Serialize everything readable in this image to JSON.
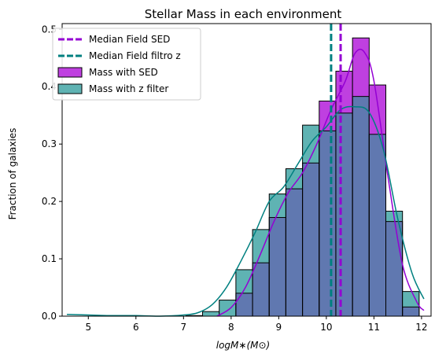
{
  "chart_data": {
    "type": "bar",
    "title": "Stellar Mass in each environment",
    "xlabel": "logM∗(M⊙)",
    "ylabel": "Fraction of galaxies",
    "xlim": [
      4.45,
      12.2
    ],
    "ylim": [
      0,
      0.51
    ],
    "xticks": [
      5,
      6,
      7,
      8,
      9,
      10,
      11,
      12
    ],
    "yticks": [
      0.0,
      0.1,
      0.2,
      0.3,
      0.4,
      0.5
    ],
    "grid": false,
    "legend_position": "top-left",
    "bin_edges": [
      7.05,
      7.4,
      7.75,
      8.1,
      8.45,
      8.8,
      9.15,
      9.5,
      9.85,
      10.2,
      10.55,
      10.9,
      11.25,
      11.6,
      11.95
    ],
    "series": [
      {
        "name": "Mass with SED",
        "type": "histogram",
        "color": "#bf40e0",
        "values": [
          0.0,
          0.0,
          0.0,
          0.04,
          0.093,
          0.172,
          0.222,
          0.267,
          0.375,
          0.427,
          0.485,
          0.403,
          0.165,
          0.016
        ],
        "kde": {
          "x": [
            7.7,
            8.0,
            8.3,
            8.6,
            8.9,
            9.2,
            9.5,
            9.8,
            10.1,
            10.4,
            10.6,
            10.8,
            11.0,
            11.3,
            11.6,
            11.9,
            12.05
          ],
          "y": [
            0.0,
            0.015,
            0.05,
            0.105,
            0.165,
            0.215,
            0.25,
            0.3,
            0.36,
            0.41,
            0.458,
            0.46,
            0.41,
            0.24,
            0.09,
            0.025,
            0.01
          ]
        }
      },
      {
        "name": "Mass with z filter",
        "type": "histogram",
        "color": "#5fb3b3",
        "values": [
          0.001,
          0.008,
          0.028,
          0.081,
          0.151,
          0.213,
          0.257,
          0.333,
          0.323,
          0.354,
          0.383,
          0.317,
          0.183,
          0.043
        ],
        "kde": {
          "x": [
            4.55,
            5.0,
            5.5,
            6.0,
            6.5,
            7.0,
            7.3,
            7.6,
            7.9,
            8.2,
            8.5,
            8.8,
            9.1,
            9.4,
            9.7,
            10.0,
            10.3,
            10.6,
            10.9,
            11.2,
            11.5,
            11.8,
            12.05
          ],
          "y": [
            0.003,
            0.002,
            0.001,
            0.001,
            0.0,
            0.002,
            0.006,
            0.02,
            0.05,
            0.095,
            0.145,
            0.2,
            0.225,
            0.265,
            0.305,
            0.33,
            0.36,
            0.365,
            0.355,
            0.29,
            0.17,
            0.075,
            0.03
          ]
        }
      }
    ],
    "vlines": [
      {
        "name": "Median Field SED",
        "x": 10.3,
        "color": "#9400d3",
        "style": "dashed"
      },
      {
        "name": "Median Field filtro z",
        "x": 10.1,
        "color": "#008080",
        "style": "dashed"
      }
    ],
    "overlap_color": "#6078b0"
  }
}
